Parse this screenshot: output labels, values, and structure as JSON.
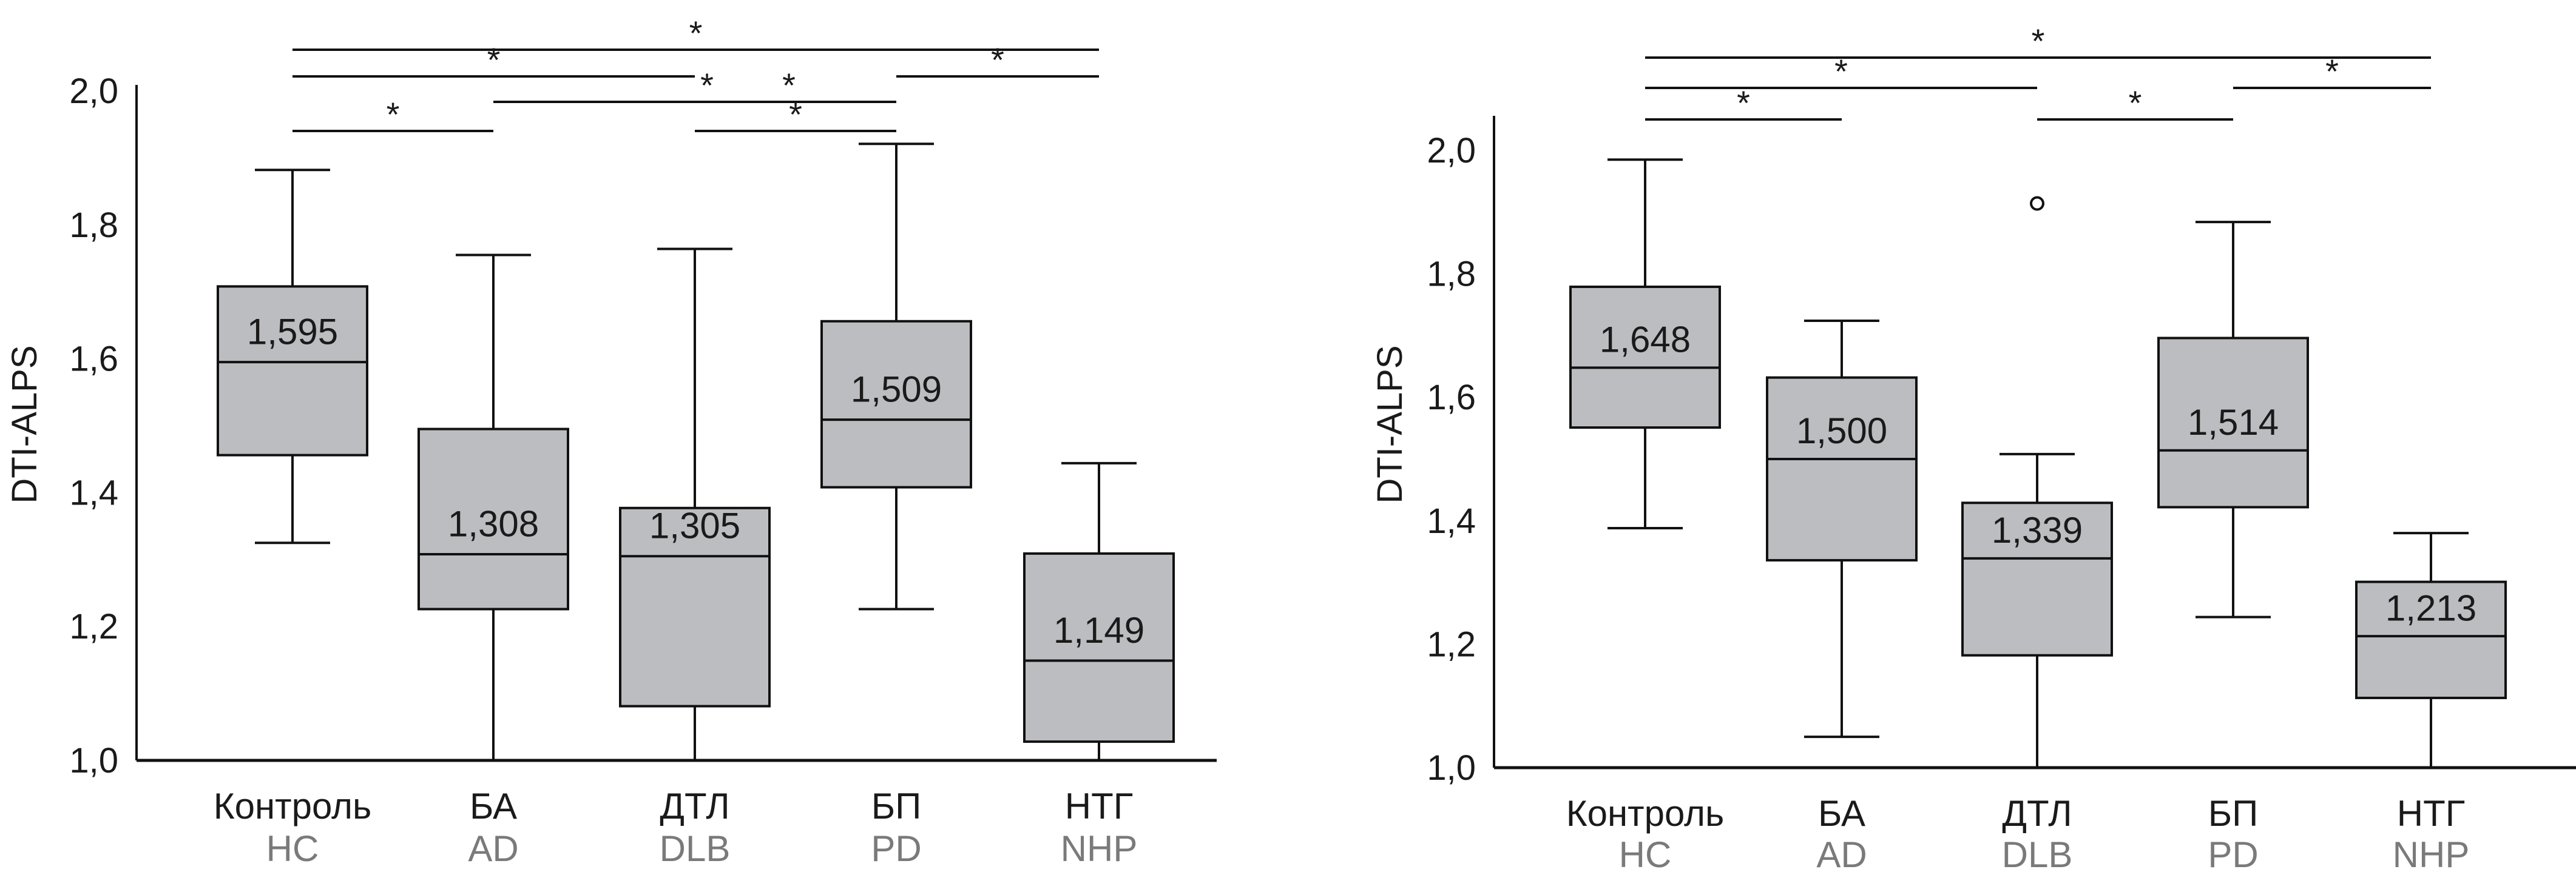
{
  "chart_data": [
    {
      "type": "box",
      "ylabel": "DTI-ALPS",
      "ylim": [
        1.0,
        2.0
      ],
      "yticks": [
        "1,0",
        "1,2",
        "1,4",
        "1,6",
        "1,8",
        "2,0"
      ],
      "ytick_values": [
        1.0,
        1.2,
        1.4,
        1.6,
        1.8,
        2.0
      ],
      "categories": [
        "Контроль",
        "БА",
        "ДТЛ",
        "БП",
        "НТГ"
      ],
      "categories_en": [
        "HC",
        "AD",
        "DLB",
        "PD",
        "NHP"
      ],
      "box_color": "#bcbdc0",
      "boxes": [
        {
          "whisker_low": 1.325,
          "q1": 1.456,
          "median": 1.595,
          "q3": 1.708,
          "whisker_high": 1.882,
          "median_label": "1,595",
          "outliers": []
        },
        {
          "whisker_low": 1.0,
          "q1": 1.226,
          "median": 1.308,
          "q3": 1.495,
          "whisker_high": 1.755,
          "median_label": "1,308",
          "outliers": []
        },
        {
          "whisker_low": 1.0,
          "q1": 1.081,
          "median": 1.305,
          "q3": 1.377,
          "whisker_high": 1.764,
          "median_label": "1,305",
          "outliers": []
        },
        {
          "whisker_low": 1.226,
          "q1": 1.408,
          "median": 1.509,
          "q3": 1.656,
          "whisker_high": 1.921,
          "median_label": "1,509",
          "outliers": []
        },
        {
          "whisker_low": 1.0,
          "q1": 1.028,
          "median": 1.149,
          "q3": 1.309,
          "whisker_high": 1.444,
          "median_label": "1,149",
          "outliers": []
        }
      ],
      "significance": [
        {
          "from": 0,
          "to": 4,
          "label": "*",
          "level": 5
        },
        {
          "from": 0,
          "to": 2,
          "label": "*",
          "level": 4
        },
        {
          "from": 3,
          "to": 4,
          "label": "*",
          "level": 4
        },
        {
          "from": 1,
          "to": 3,
          "label": "* *",
          "level": 3
        },
        {
          "from": 2,
          "to": 3,
          "label": "*",
          "level": 2
        },
        {
          "from": 0,
          "to": 1,
          "label": "*",
          "level": 2
        }
      ]
    },
    {
      "type": "box",
      "ylabel": "DTI-ALPS",
      "ylim": [
        1.0,
        2.0
      ],
      "yticks": [
        "1,0",
        "1,2",
        "1,4",
        "1,6",
        "1,8",
        "2,0"
      ],
      "ytick_values": [
        1.0,
        1.2,
        1.4,
        1.6,
        1.8,
        2.0
      ],
      "categories": [
        "Контроль",
        "БА",
        "ДТЛ",
        "БП",
        "НТГ"
      ],
      "categories_en": [
        "HC",
        "AD",
        "DLB",
        "PD",
        "NHP"
      ],
      "box_color": "#bcbdc0",
      "boxes": [
        {
          "whisker_low": 1.388,
          "q1": 1.551,
          "median": 1.648,
          "q3": 1.779,
          "whisker_high": 1.985,
          "median_label": "1,648",
          "outliers": []
        },
        {
          "whisker_low": 1.05,
          "q1": 1.336,
          "median": 1.5,
          "q3": 1.632,
          "whisker_high": 1.724,
          "median_label": "1,500",
          "outliers": []
        },
        {
          "whisker_low": 1.0,
          "q1": 1.182,
          "median": 1.339,
          "q3": 1.429,
          "whisker_high": 1.508,
          "median_label": "1,339",
          "outliers": [
            1.914
          ]
        },
        {
          "whisker_low": 1.244,
          "q1": 1.422,
          "median": 1.514,
          "q3": 1.696,
          "whisker_high": 1.884,
          "median_label": "1,514",
          "outliers": []
        },
        {
          "whisker_low": 1.0,
          "q1": 1.113,
          "median": 1.213,
          "q3": 1.301,
          "whisker_high": 1.38,
          "median_label": "1,213",
          "outliers": []
        }
      ],
      "significance": [
        {
          "from": 0,
          "to": 4,
          "label": "*",
          "level": 3
        },
        {
          "from": 0,
          "to": 2,
          "label": "*",
          "level": 2
        },
        {
          "from": 3,
          "to": 4,
          "label": "*",
          "level": 2
        },
        {
          "from": 2,
          "to": 3,
          "label": "*",
          "level": 1
        },
        {
          "from": 0,
          "to": 1,
          "label": "*",
          "level": 1
        }
      ]
    }
  ]
}
